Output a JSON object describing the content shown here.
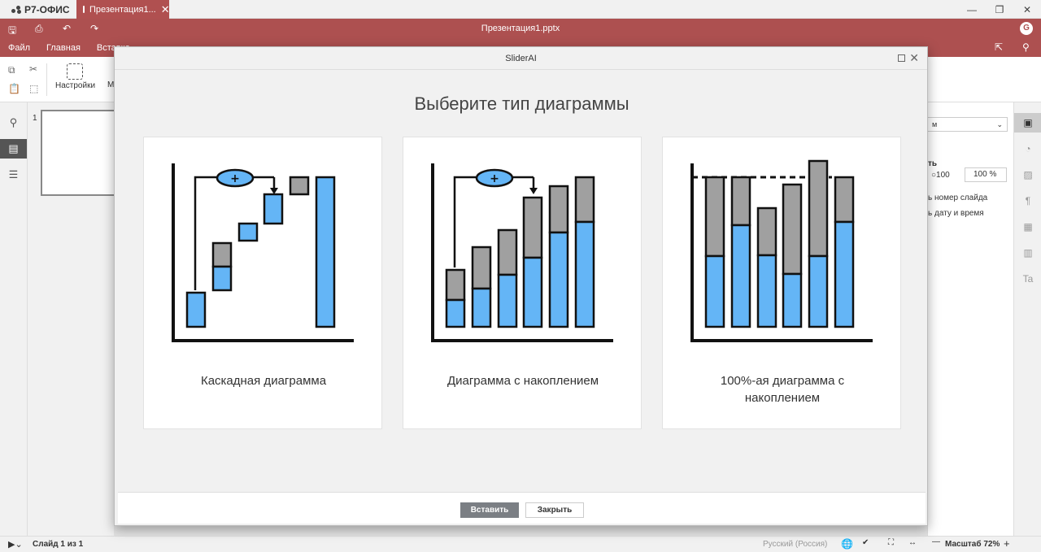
{
  "app": {
    "logo_text": "Р7-ОФИС",
    "tab_title": "Презентация1...",
    "file_title": "Презентация1.pptx",
    "user_initial": "G"
  },
  "menu": {
    "items": [
      "Файл",
      "Главная",
      "Вставка"
    ]
  },
  "toolbar": {
    "settings_label": "Настройки",
    "truncated": "М"
  },
  "thumbnails": {
    "slide_number": "1"
  },
  "right_panel": {
    "select_value": "м",
    "section_label": "ть",
    "radio_label": "100",
    "spin_value": "100 %",
    "slide_number_option": "ь номер слайда",
    "datetime_option": "ь дату и время"
  },
  "status": {
    "slide_info": "Слайд 1 из 1",
    "language": "Русский (Россия)",
    "zoom": "Масштаб 72%"
  },
  "dialog": {
    "title": "SliderAI",
    "heading": "Выберите тип диаграммы",
    "cards": [
      {
        "label": "Каскадная диаграмма"
      },
      {
        "label": "Диаграмма с накоплением"
      },
      {
        "label": "100%-ая диаграмма с накоплением"
      }
    ],
    "insert_label": "Вставить",
    "close_label": "Закрыть"
  },
  "colors": {
    "header": "#ad5050",
    "bar_blue": "#64b5f6",
    "bar_gray": "#a0a0a0"
  }
}
